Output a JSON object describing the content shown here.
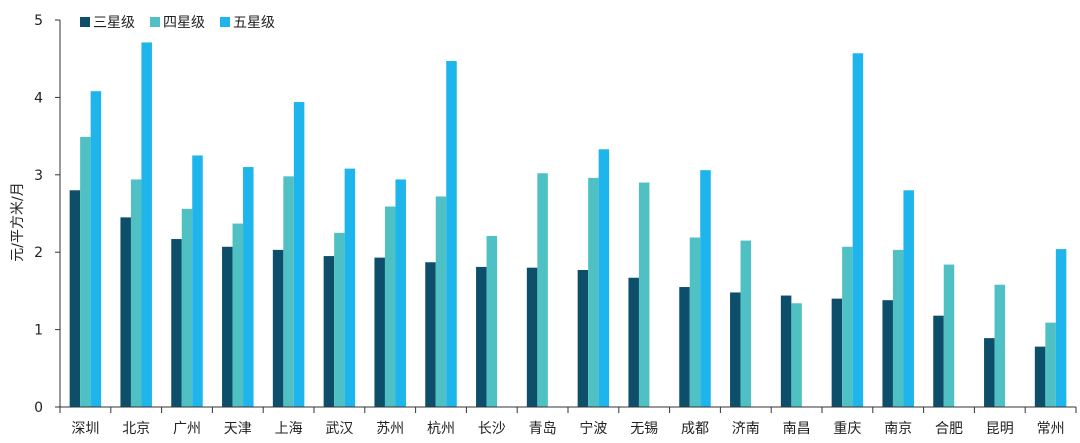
{
  "chart_data": {
    "type": "bar",
    "ylabel": "元/平方米/月",
    "ylim": [
      0,
      5
    ],
    "yticks": [
      0,
      1,
      2,
      3,
      4,
      5
    ],
    "grid": false,
    "legend_position": "top-left",
    "categories": [
      "深圳",
      "北京",
      "广州",
      "天津",
      "上海",
      "武汉",
      "苏州",
      "杭州",
      "长沙",
      "青岛",
      "宁波",
      "无锡",
      "成都",
      "济南",
      "南昌",
      "重庆",
      "南京",
      "合肥",
      "昆明",
      "常州"
    ],
    "series": [
      {
        "name": "三星级",
        "color": "#0d4f6b",
        "values": [
          2.8,
          2.45,
          2.17,
          2.07,
          2.03,
          1.95,
          1.93,
          1.87,
          1.81,
          1.8,
          1.77,
          1.67,
          1.55,
          1.48,
          1.44,
          1.4,
          1.38,
          1.18,
          0.89,
          0.78
        ]
      },
      {
        "name": "四星级",
        "color": "#4fc0c4",
        "values": [
          3.49,
          2.94,
          2.56,
          2.37,
          2.98,
          2.25,
          2.59,
          2.72,
          2.21,
          3.02,
          2.96,
          2.9,
          2.19,
          2.15,
          1.34,
          2.07,
          2.03,
          1.84,
          1.58,
          1.09
        ]
      },
      {
        "name": "五星级",
        "color": "#1eb4ec",
        "values": [
          4.08,
          4.71,
          3.25,
          3.1,
          3.94,
          3.08,
          2.94,
          4.47,
          null,
          null,
          3.33,
          null,
          3.06,
          null,
          null,
          4.57,
          2.8,
          null,
          null,
          2.04
        ]
      }
    ]
  }
}
